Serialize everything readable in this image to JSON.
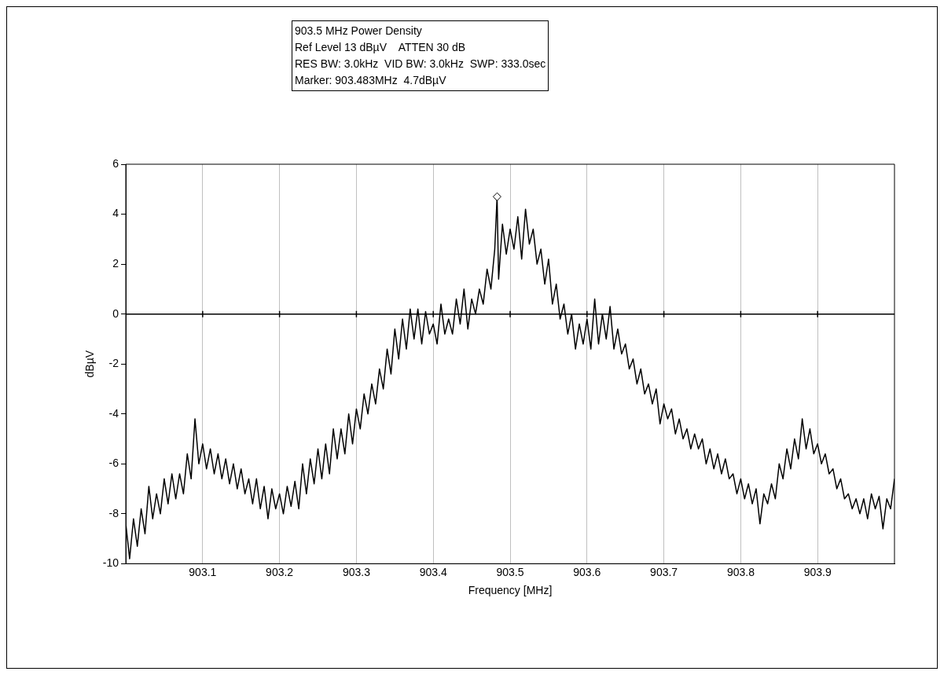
{
  "chart_data": {
    "type": "line",
    "title": "903.5 MHz Power Density",
    "annotations": [
      "Ref Level 13 dBµV    ATTEN 30 dB",
      "RES BW: 3.0kHz  VID BW: 3.0kHz  SWP: 333.0sec",
      "Marker: 903.483MHz  4.7dBµV"
    ],
    "xlabel": "Frequency [MHz]",
    "ylabel": "dBµV",
    "xlim": [
      903.0,
      904.0
    ],
    "xticks": [
      903.1,
      903.2,
      903.3,
      903.4,
      903.5,
      903.6,
      903.7,
      903.8,
      903.9
    ],
    "ylim": [
      -10,
      6
    ],
    "yticks": [
      -10,
      -8,
      -6,
      -4,
      -2,
      0,
      2,
      4,
      6
    ],
    "grid": "x",
    "legend": false,
    "line_style": "solid",
    "ref_lines": [
      {
        "axis": "y",
        "value": 0,
        "color": "#000000"
      }
    ],
    "series": [
      {
        "color": "#000000",
        "marker": "none",
        "x": [
          903.0,
          903.005,
          903.01,
          903.015,
          903.02,
          903.025,
          903.03,
          903.035,
          903.04,
          903.045,
          903.05,
          903.055,
          903.06,
          903.065,
          903.07,
          903.075,
          903.08,
          903.085,
          903.09,
          903.095,
          903.1,
          903.105,
          903.11,
          903.115,
          903.12,
          903.125,
          903.13,
          903.135,
          903.14,
          903.145,
          903.15,
          903.155,
          903.16,
          903.165,
          903.17,
          903.175,
          903.18,
          903.185,
          903.19,
          903.195,
          903.2,
          903.205,
          903.21,
          903.215,
          903.22,
          903.225,
          903.23,
          903.235,
          903.24,
          903.245,
          903.25,
          903.255,
          903.26,
          903.265,
          903.27,
          903.275,
          903.28,
          903.285,
          903.29,
          903.295,
          903.3,
          903.305,
          903.31,
          903.315,
          903.32,
          903.325,
          903.33,
          903.335,
          903.34,
          903.345,
          903.35,
          903.355,
          903.36,
          903.365,
          903.37,
          903.375,
          903.38,
          903.385,
          903.39,
          903.395,
          903.4,
          903.405,
          903.41,
          903.415,
          903.42,
          903.425,
          903.43,
          903.435,
          903.44,
          903.445,
          903.45,
          903.455,
          903.46,
          903.465,
          903.47,
          903.475,
          903.48,
          903.483,
          903.485,
          903.49,
          903.495,
          903.5,
          903.505,
          903.51,
          903.515,
          903.52,
          903.525,
          903.53,
          903.535,
          903.54,
          903.545,
          903.55,
          903.555,
          903.56,
          903.565,
          903.57,
          903.575,
          903.58,
          903.585,
          903.59,
          903.595,
          903.6,
          903.605,
          903.61,
          903.615,
          903.62,
          903.625,
          903.63,
          903.635,
          903.64,
          903.645,
          903.65,
          903.655,
          903.66,
          903.665,
          903.67,
          903.675,
          903.68,
          903.685,
          903.69,
          903.695,
          903.7,
          903.705,
          903.71,
          903.715,
          903.72,
          903.725,
          903.73,
          903.735,
          903.74,
          903.745,
          903.75,
          903.755,
          903.76,
          903.765,
          903.77,
          903.775,
          903.78,
          903.785,
          903.79,
          903.795,
          903.8,
          903.805,
          903.81,
          903.815,
          903.82,
          903.825,
          903.83,
          903.835,
          903.84,
          903.845,
          903.85,
          903.855,
          903.86,
          903.865,
          903.87,
          903.875,
          903.88,
          903.885,
          903.89,
          903.895,
          903.9,
          903.905,
          903.91,
          903.915,
          903.92,
          903.925,
          903.93,
          903.935,
          903.94,
          903.945,
          903.95,
          903.955,
          903.96,
          903.965,
          903.97,
          903.975,
          903.98,
          903.985,
          903.99,
          903.995,
          904.0
        ],
        "values": [
          -8.4,
          -9.8,
          -8.2,
          -9.3,
          -7.8,
          -8.8,
          -6.9,
          -8.2,
          -7.2,
          -8.0,
          -6.6,
          -7.6,
          -6.4,
          -7.4,
          -6.4,
          -7.2,
          -5.6,
          -6.6,
          -4.2,
          -6.0,
          -5.2,
          -6.2,
          -5.4,
          -6.4,
          -5.6,
          -6.6,
          -5.8,
          -6.8,
          -6.0,
          -7.0,
          -6.2,
          -7.2,
          -6.6,
          -7.6,
          -6.6,
          -7.8,
          -6.9,
          -8.2,
          -7.0,
          -7.8,
          -7.2,
          -8.0,
          -6.9,
          -7.7,
          -6.7,
          -7.8,
          -6.0,
          -7.2,
          -5.8,
          -6.8,
          -5.4,
          -6.6,
          -5.2,
          -6.4,
          -4.6,
          -5.8,
          -4.6,
          -5.6,
          -4.0,
          -5.2,
          -3.8,
          -4.6,
          -3.2,
          -4.0,
          -2.8,
          -3.6,
          -2.2,
          -3.0,
          -1.4,
          -2.4,
          -0.6,
          -1.8,
          -0.2,
          -1.4,
          0.2,
          -1.0,
          0.2,
          -1.2,
          0.1,
          -0.8,
          -0.4,
          -1.2,
          0.4,
          -0.8,
          -0.2,
          -0.8,
          0.6,
          -0.4,
          1.0,
          -0.6,
          0.6,
          0.0,
          1.0,
          0.4,
          1.8,
          1.0,
          2.6,
          4.7,
          1.4,
          3.6,
          2.4,
          3.4,
          2.6,
          3.9,
          2.2,
          4.2,
          2.8,
          3.4,
          2.0,
          2.6,
          1.2,
          2.2,
          0.4,
          1.2,
          -0.2,
          0.4,
          -0.8,
          0.0,
          -1.4,
          -0.4,
          -1.2,
          -0.2,
          -1.4,
          0.6,
          -1.2,
          0.0,
          -1.0,
          0.3,
          -1.4,
          -0.6,
          -1.6,
          -1.2,
          -2.2,
          -1.8,
          -2.8,
          -2.2,
          -3.2,
          -2.8,
          -3.6,
          -3.0,
          -4.4,
          -3.6,
          -4.2,
          -3.8,
          -4.8,
          -4.2,
          -5.0,
          -4.6,
          -5.4,
          -4.8,
          -5.4,
          -5.0,
          -6.0,
          -5.4,
          -6.2,
          -5.6,
          -6.4,
          -5.8,
          -6.6,
          -6.4,
          -7.2,
          -6.6,
          -7.4,
          -6.8,
          -7.6,
          -7.0,
          -8.4,
          -7.2,
          -7.6,
          -6.8,
          -7.4,
          -6.0,
          -6.6,
          -5.4,
          -6.2,
          -5.0,
          -5.8,
          -4.2,
          -5.4,
          -4.6,
          -5.6,
          -5.2,
          -6.0,
          -5.6,
          -6.4,
          -6.2,
          -7.0,
          -6.6,
          -7.4,
          -7.2,
          -7.8,
          -7.4,
          -8.0,
          -7.4,
          -8.2,
          -7.2,
          -7.8,
          -7.3,
          -8.6,
          -7.4,
          -7.8,
          -6.6
        ]
      },
      {
        "type": "scatter",
        "color": "#000000",
        "marker": "diamond",
        "x": [
          903.483
        ],
        "values": [
          4.7
        ]
      }
    ]
  }
}
